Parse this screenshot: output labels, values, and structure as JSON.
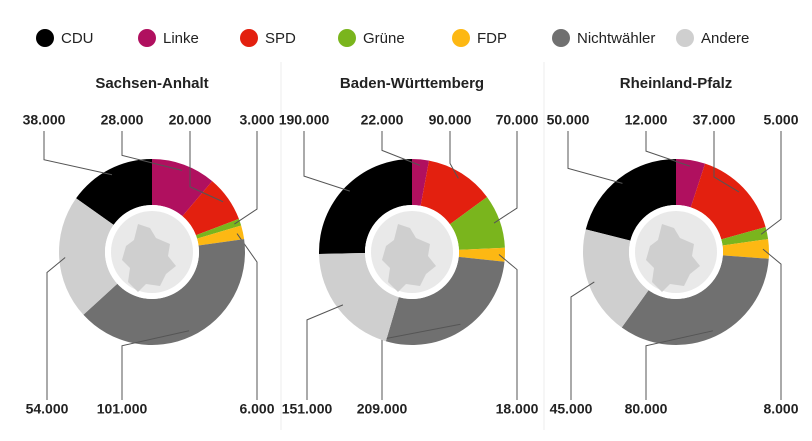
{
  "chart_data": [
    {
      "type": "pie",
      "title": "Sachsen-Anhalt",
      "categories": [
        "CDU",
        "Linke",
        "SPD",
        "Grüne",
        "FDP",
        "Nichtwähler",
        "Andere"
      ],
      "colors": [
        "#000000",
        "#b0105f",
        "#e3200f",
        "#7ab51d",
        "#fdb813",
        "#707070",
        "#cfcfcf"
      ],
      "values": [
        38000,
        28000,
        20000,
        3000,
        6000,
        101000,
        54000
      ],
      "value_labels": [
        "38.000",
        "28.000",
        "20.000",
        "3.000",
        "6.000",
        "101.000",
        "54.000"
      ]
    },
    {
      "type": "pie",
      "title": "Baden-Württemberg",
      "categories": [
        "CDU",
        "Linke",
        "SPD",
        "Grüne",
        "FDP",
        "Nichtwähler",
        "Andere"
      ],
      "colors": [
        "#000000",
        "#b0105f",
        "#e3200f",
        "#7ab51d",
        "#fdb813",
        "#707070",
        "#cfcfcf"
      ],
      "values": [
        190000,
        22000,
        90000,
        70000,
        18000,
        209000,
        151000
      ],
      "value_labels": [
        "190.000",
        "22.000",
        "90.000",
        "70.000",
        "18.000",
        "209.000",
        "151.000"
      ]
    },
    {
      "type": "pie",
      "title": "Rheinland-Pfalz",
      "categories": [
        "CDU",
        "Linke",
        "SPD",
        "Grüne",
        "FDP",
        "Nichtwähler",
        "Andere"
      ],
      "colors": [
        "#000000",
        "#b0105f",
        "#e3200f",
        "#7ab51d",
        "#fdb813",
        "#707070",
        "#cfcfcf"
      ],
      "values": [
        50000,
        12000,
        37000,
        5000,
        8000,
        80000,
        45000
      ],
      "value_labels": [
        "50.000",
        "12.000",
        "37.000",
        "5.000",
        "8.000",
        "80.000",
        "45.000"
      ]
    }
  ]
}
